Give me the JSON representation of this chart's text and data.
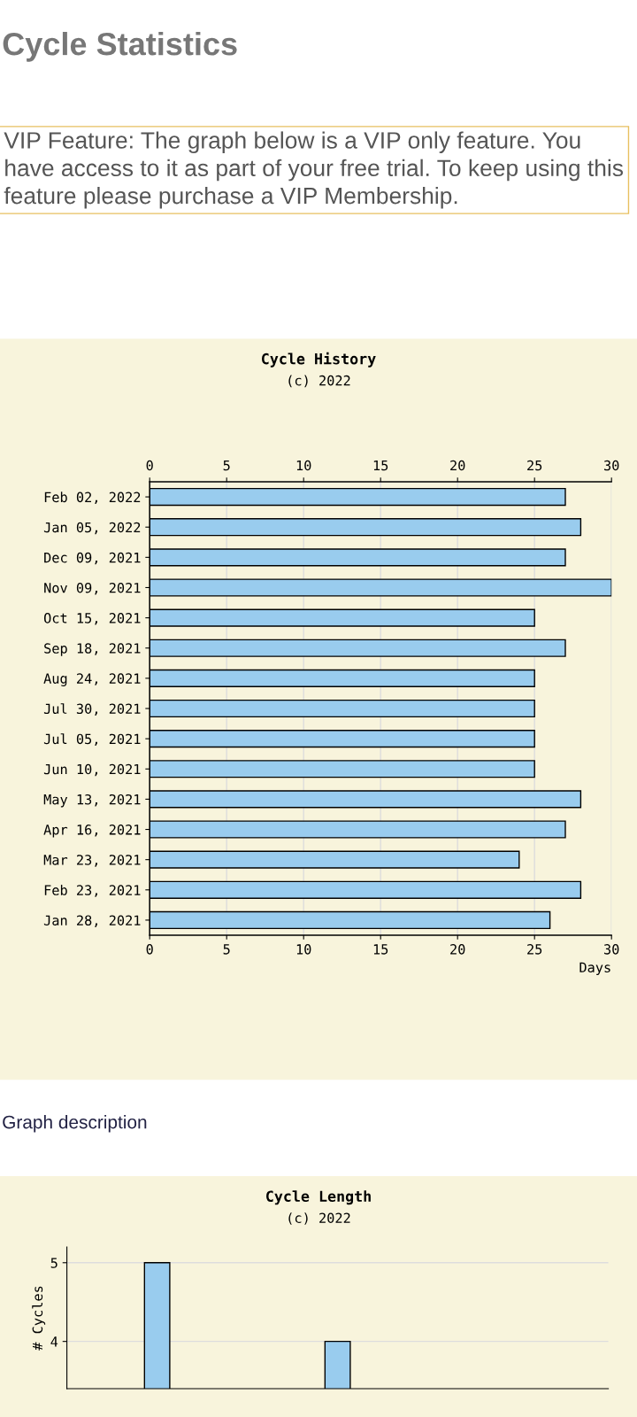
{
  "chart_data": [
    {
      "type": "bar",
      "orientation": "horizontal",
      "title": "Cycle History",
      "subtitle": "(c) 2022",
      "xlabel": "Days",
      "categories": [
        "Feb 02, 2022",
        "Jan 05, 2022",
        "Dec 09, 2021",
        "Nov 09, 2021",
        "Oct 15, 2021",
        "Sep 18, 2021",
        "Aug 24, 2021",
        "Jul 30, 2021",
        "Jul 05, 2021",
        "Jun 10, 2021",
        "May 13, 2021",
        "Apr 16, 2021",
        "Mar 23, 2021",
        "Feb 23, 2021",
        "Jan 28, 2021"
      ],
      "values": [
        27,
        28,
        27,
        30,
        25,
        27,
        25,
        25,
        25,
        25,
        28,
        27,
        24,
        28,
        26
      ],
      "color": "#99ccee",
      "xlim": [
        0,
        30
      ],
      "xticks": [
        0,
        5,
        10,
        15,
        20,
        25,
        30
      ],
      "x2lim": [
        0,
        30
      ],
      "x2ticks": [
        0,
        5,
        10,
        15,
        20,
        25,
        30
      ],
      "grid": "x",
      "annotations": [
        "Cycle Statistics",
        "VIP Feature: The graph below is a VIP only feature. You have access to it as part of your free trial. To keep using this feature please purchase a VIP Membership.",
        "Graph description"
      ]
    },
    {
      "type": "bar",
      "title": "Cycle Length",
      "subtitle": "(c) 2022",
      "ylabel": "# Cycles",
      "categories": [
        null,
        null,
        null,
        null,
        null,
        null,
        null,
        null,
        null,
        null,
        null,
        null,
        null,
        null,
        null
      ],
      "values": [
        null,
        null,
        5,
        null,
        null,
        null,
        null,
        4,
        null,
        null,
        null,
        null,
        null,
        null,
        null
      ],
      "color": "#99ccee",
      "ylim": [
        3.4,
        5.2
      ],
      "yticks": [
        4,
        5
      ],
      "grid": "y",
      "tick_labels": "y"
    }
  ]
}
